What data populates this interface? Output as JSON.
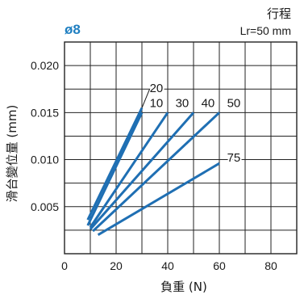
{
  "header": {
    "size_label": "ø8",
    "stroke_title": "行程",
    "stroke_value": "Lr=50 mm",
    "accent_color": "#1f7fc1"
  },
  "chart_data": {
    "type": "line",
    "xlabel": "負重 (N)",
    "ylabel": "滑台變位量 (mm)",
    "xlim": [
      0,
      90
    ],
    "ylim": [
      0,
      0.0225
    ],
    "xticks": [
      0,
      20,
      40,
      60,
      80
    ],
    "yticks": [
      0.005,
      0.01,
      0.015,
      0.02
    ],
    "ytick_labels": [
      "0.005",
      "0.010",
      "0.015",
      "0.020"
    ],
    "grid": true,
    "series_color": "#1f6fb3",
    "series": [
      {
        "name": "20",
        "x": [
          9,
          30
        ],
        "y": [
          0.0036,
          0.0155
        ]
      },
      {
        "name": "10",
        "x": [
          9,
          30
        ],
        "y": [
          0.003,
          0.015
        ]
      },
      {
        "name": "30",
        "x": [
          10,
          40
        ],
        "y": [
          0.0028,
          0.015
        ]
      },
      {
        "name": "40",
        "x": [
          10,
          50
        ],
        "y": [
          0.0026,
          0.015
        ]
      },
      {
        "name": "50",
        "x": [
          11,
          60
        ],
        "y": [
          0.0024,
          0.015
        ]
      },
      {
        "name": "75",
        "x": [
          13,
          60
        ],
        "y": [
          0.002,
          0.0096
        ]
      }
    ],
    "annotations": [
      {
        "text": "20",
        "x": 33,
        "y": 0.0176,
        "leader_to": [
          30,
          0.0155
        ],
        "leader_from": [
          33,
          0.0175
        ]
      },
      {
        "text": "10",
        "x": 33,
        "y": 0.016
      },
      {
        "text": "30",
        "x": 43,
        "y": 0.016
      },
      {
        "text": "40",
        "x": 53,
        "y": 0.016
      },
      {
        "text": "50",
        "x": 63,
        "y": 0.016
      },
      {
        "text": "75",
        "x": 63,
        "y": 0.0102
      }
    ]
  }
}
